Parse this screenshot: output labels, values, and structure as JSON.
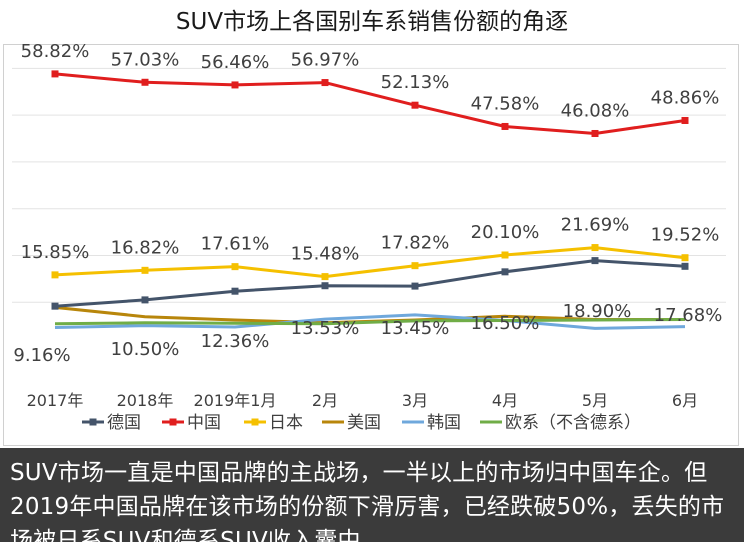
{
  "title": "SUV市场上各国别车系销售份额的角逐",
  "caption": "SUV市场一直是中国品牌的主战场，一半以上的市场归中国车企。但2019年中国品牌在该市场的份额下滑厉害，已经跌破50%，丢失的市场被日系SUV和德系SUV收入囊中。",
  "chart_data": {
    "type": "line",
    "categories": [
      "2017年",
      "2018年",
      "2019年1月",
      "2月",
      "3月",
      "4月",
      "5月",
      "6月"
    ],
    "ylim": [
      0,
      65
    ],
    "grid": true,
    "legend_position": "bottom",
    "series": [
      {
        "name": "德国",
        "color": "#44546a",
        "values": [
          9.16,
          10.5,
          12.36,
          13.53,
          13.45,
          16.5,
          18.9,
          17.68
        ],
        "labels": [
          "9.16%",
          "10.50%",
          "12.36%",
          "13.53%",
          "13.45%",
          "16.50%",
          "18.90%",
          "17.68%"
        ]
      },
      {
        "name": "中国",
        "color": "#e01e1e",
        "values": [
          58.82,
          57.03,
          56.46,
          56.97,
          52.13,
          47.58,
          46.08,
          48.86
        ],
        "labels": [
          "58.82%",
          "57.03%",
          "56.46%",
          "56.97%",
          "52.13%",
          "47.58%",
          "46.08%",
          "48.86%"
        ]
      },
      {
        "name": "日本",
        "color": "#f5c000",
        "values": [
          15.85,
          16.82,
          17.61,
          15.48,
          17.82,
          20.1,
          21.69,
          19.52
        ],
        "labels": [
          "15.85%",
          "16.82%",
          "17.61%",
          "15.48%",
          "17.82%",
          "20.10%",
          "21.69%",
          "19.52%"
        ]
      },
      {
        "name": "美国",
        "color": "#b8860b",
        "values": [
          8.9,
          6.9,
          6.2,
          5.6,
          6.2,
          7.0,
          6.3,
          6.3
        ]
      },
      {
        "name": "韩国",
        "color": "#6fa8dc",
        "values": [
          4.6,
          5.0,
          4.7,
          6.4,
          7.3,
          6.1,
          4.4,
          4.8
        ]
      },
      {
        "name": "欧系（不含德系）",
        "color": "#70ad47",
        "values": [
          5.4,
          5.6,
          5.5,
          5.4,
          6.0,
          6.1,
          6.2,
          6.3
        ]
      }
    ]
  }
}
